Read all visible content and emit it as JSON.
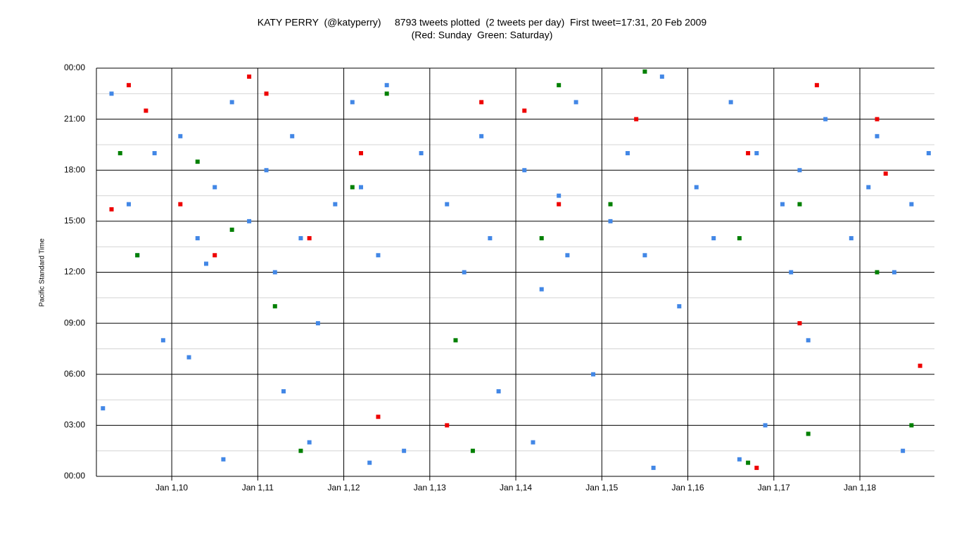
{
  "chart_data": {
    "type": "scatter",
    "title": "KATY PERRY  (@katyperry)     8793 tweets plotted  (2 tweets per day)  First tweet=17:31, 20 Feb 2009",
    "subtitle": "(Red: Sunday  Green: Saturday)",
    "y_label": "Pacific Standard Time",
    "xlim": [
      2009.124,
      2018.867
    ],
    "xticks": [
      {
        "value": 2010,
        "label": "Jan 1,10"
      },
      {
        "value": 2011,
        "label": "Jan 1,11"
      },
      {
        "value": 2012,
        "label": "Jan 1,12"
      },
      {
        "value": 2013,
        "label": "Jan 1,13"
      },
      {
        "value": 2014,
        "label": "Jan 1,14"
      },
      {
        "value": 2015,
        "label": "Jan 1,15"
      },
      {
        "value": 2016,
        "label": "Jan 1,16"
      },
      {
        "value": 2017,
        "label": "Jan 1,17"
      },
      {
        "value": 2018,
        "label": "Jan 1,18"
      }
    ],
    "ylim": [
      0,
      24
    ],
    "yticks": [
      {
        "value": 0,
        "label": "00:00"
      },
      {
        "value": 3,
        "label": "03:00"
      },
      {
        "value": 6,
        "label": "06:00"
      },
      {
        "value": 9,
        "label": "09:00"
      },
      {
        "value": 12,
        "label": "12:00"
      },
      {
        "value": 15,
        "label": "15:00"
      },
      {
        "value": 18,
        "label": "18:00"
      },
      {
        "value": 21,
        "label": "21:00"
      },
      {
        "value": 24,
        "label": "00:00"
      }
    ],
    "yticks_minor": [
      1.5,
      4.5,
      7.5,
      10.5,
      13.5,
      16.5,
      19.5,
      22.5
    ],
    "grid": true,
    "series": [
      {
        "color": "#4287e6",
        "x": [
          2009.3,
          2009.5,
          2009.6,
          2009.8,
          2009.9,
          2010.1,
          2010.3,
          2010.4,
          2010.5,
          2010.6,
          2010.7,
          2010.9,
          2011.1,
          2011.2,
          2011.4,
          2011.5,
          2011.6,
          2011.7,
          2011.9,
          2012.1,
          2012.2,
          2012.4,
          2012.5,
          2012.7,
          2012.9,
          2013.2,
          2013.4,
          2013.6,
          2013.7,
          2013.8,
          2014.1,
          2014.3,
          2014.5,
          2014.6,
          2014.7,
          2014.9,
          2015.1,
          2015.3,
          2015.5,
          2015.7,
          2015.9,
          2016.1,
          2016.3,
          2016.5,
          2016.6,
          2016.8,
          2017.1,
          2017.2,
          2017.3,
          2017.4,
          2017.6,
          2017.9,
          2018.1,
          2018.2,
          2018.4,
          2018.6,
          2018.8,
          2009.2,
          2010.2,
          2011.3,
          2012.3,
          2014.2,
          2016.9,
          2018.5,
          2015.6
        ],
        "values": [
          22.5,
          16,
          13,
          19,
          8,
          20,
          14,
          12.5,
          17,
          1,
          22,
          15,
          18,
          12,
          20,
          14,
          2,
          9,
          16,
          22,
          17,
          13,
          23,
          1.5,
          19,
          16,
          12,
          20,
          14,
          5,
          18,
          11,
          16.5,
          13,
          22,
          6,
          15,
          19,
          13,
          23.5,
          10,
          17,
          14,
          22,
          1,
          19,
          16,
          12,
          18,
          8,
          21,
          14,
          17,
          20,
          12,
          16,
          19,
          4,
          7,
          5,
          0.8,
          2,
          3,
          1.5,
          0.5
        ]
      },
      {
        "color": "#ee0000",
        "x": [
          2009.3,
          2009.5,
          2009.7,
          2010.1,
          2010.5,
          2010.9,
          2011.1,
          2011.6,
          2012.2,
          2012.4,
          2013.2,
          2013.6,
          2014.1,
          2014.5,
          2015.4,
          2016.7,
          2016.8,
          2017.3,
          2017.5,
          2018.2,
          2018.3,
          2018.7
        ],
        "values": [
          15.7,
          23,
          21.5,
          16,
          13,
          23.5,
          22.5,
          14,
          19,
          3.5,
          3,
          22,
          21.5,
          16,
          21,
          19,
          0.5,
          9,
          23,
          21,
          17.8,
          6.5
        ]
      },
      {
        "color": "#008000",
        "x": [
          2009.4,
          2009.6,
          2010.3,
          2010.7,
          2011.2,
          2011.5,
          2012.1,
          2012.5,
          2013.3,
          2013.5,
          2014.3,
          2014.5,
          2015.1,
          2015.5,
          2016.6,
          2016.7,
          2017.3,
          2017.4,
          2018.2,
          2018.6
        ],
        "values": [
          19,
          13,
          18.5,
          14.5,
          10,
          1.5,
          17,
          22.5,
          8,
          1.5,
          14,
          23,
          16,
          23.8,
          14,
          0.8,
          16,
          2.5,
          12,
          3
        ]
      }
    ]
  }
}
